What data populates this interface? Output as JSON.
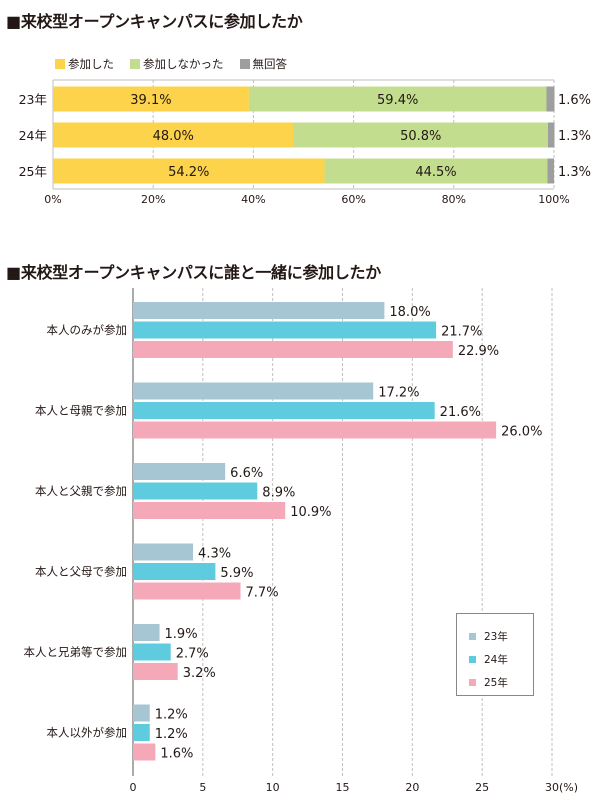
{
  "chart_data": [
    {
      "type": "bar",
      "orientation": "horizontal",
      "stacked": true,
      "title": "■来校型オープンキャンパスに参加したか",
      "categories": [
        "23年",
        "24年",
        "25年"
      ],
      "series": [
        {
          "name": "参加した",
          "color": "#fcd34a",
          "values": [
            39.1,
            48.0,
            54.2
          ],
          "labels": [
            "39.1%",
            "48.0%",
            "54.2%"
          ]
        },
        {
          "name": "参加しなかった",
          "color": "#c3dd8f",
          "values": [
            59.4,
            50.8,
            44.5
          ],
          "labels": [
            "59.4%",
            "50.8%",
            "44.5%"
          ]
        },
        {
          "name": "無回答",
          "color": "#9e9e9e",
          "values": [
            1.6,
            1.3,
            1.3
          ],
          "labels": [
            "1.6%",
            "1.3%",
            "1.3%"
          ]
        }
      ],
      "xlim": [
        0,
        100
      ],
      "ticks": [
        0,
        20,
        40,
        60,
        80,
        100
      ],
      "tick_labels": [
        "0%",
        "20%",
        "40%",
        "60%",
        "80%",
        "100%"
      ],
      "grid": true,
      "legend_position": "top-left"
    },
    {
      "type": "bar",
      "orientation": "horizontal",
      "stacked": false,
      "title": "■来校型オープンキャンパスに誰と一緒に参加したか",
      "categories": [
        "本人のみが参加",
        "本人と母親で参加",
        "本人と父親で参加",
        "本人と父母で参加",
        "本人と兄弟等で参加",
        "本人以外が参加"
      ],
      "series": [
        {
          "name": "23年",
          "color": "#a6c6d3",
          "values": [
            18.0,
            17.2,
            6.6,
            4.3,
            1.9,
            1.2
          ],
          "labels": [
            "18.0%",
            "17.2%",
            "6.6%",
            "4.3%",
            "1.9%",
            "1.2%"
          ]
        },
        {
          "name": "24年",
          "color": "#5fcbdf",
          "values": [
            21.7,
            21.6,
            8.9,
            5.9,
            2.7,
            1.2
          ],
          "labels": [
            "21.7%",
            "21.6%",
            "8.9%",
            "5.9%",
            "2.7%",
            "1.2%"
          ]
        },
        {
          "name": "25年",
          "color": "#f4a8b8",
          "values": [
            22.9,
            26.0,
            10.9,
            7.7,
            3.2,
            1.6
          ],
          "labels": [
            "22.9%",
            "26.0%",
            "10.9%",
            "7.7%",
            "3.2%",
            "1.6%"
          ]
        }
      ],
      "xlim": [
        0,
        30
      ],
      "ticks": [
        0,
        5,
        10,
        15,
        20,
        25,
        30
      ],
      "tick_labels": [
        "0",
        "5",
        "10",
        "15",
        "20",
        "25",
        "30"
      ],
      "axis_unit": "(%)",
      "grid": true,
      "legend_position": "bottom-right"
    }
  ]
}
